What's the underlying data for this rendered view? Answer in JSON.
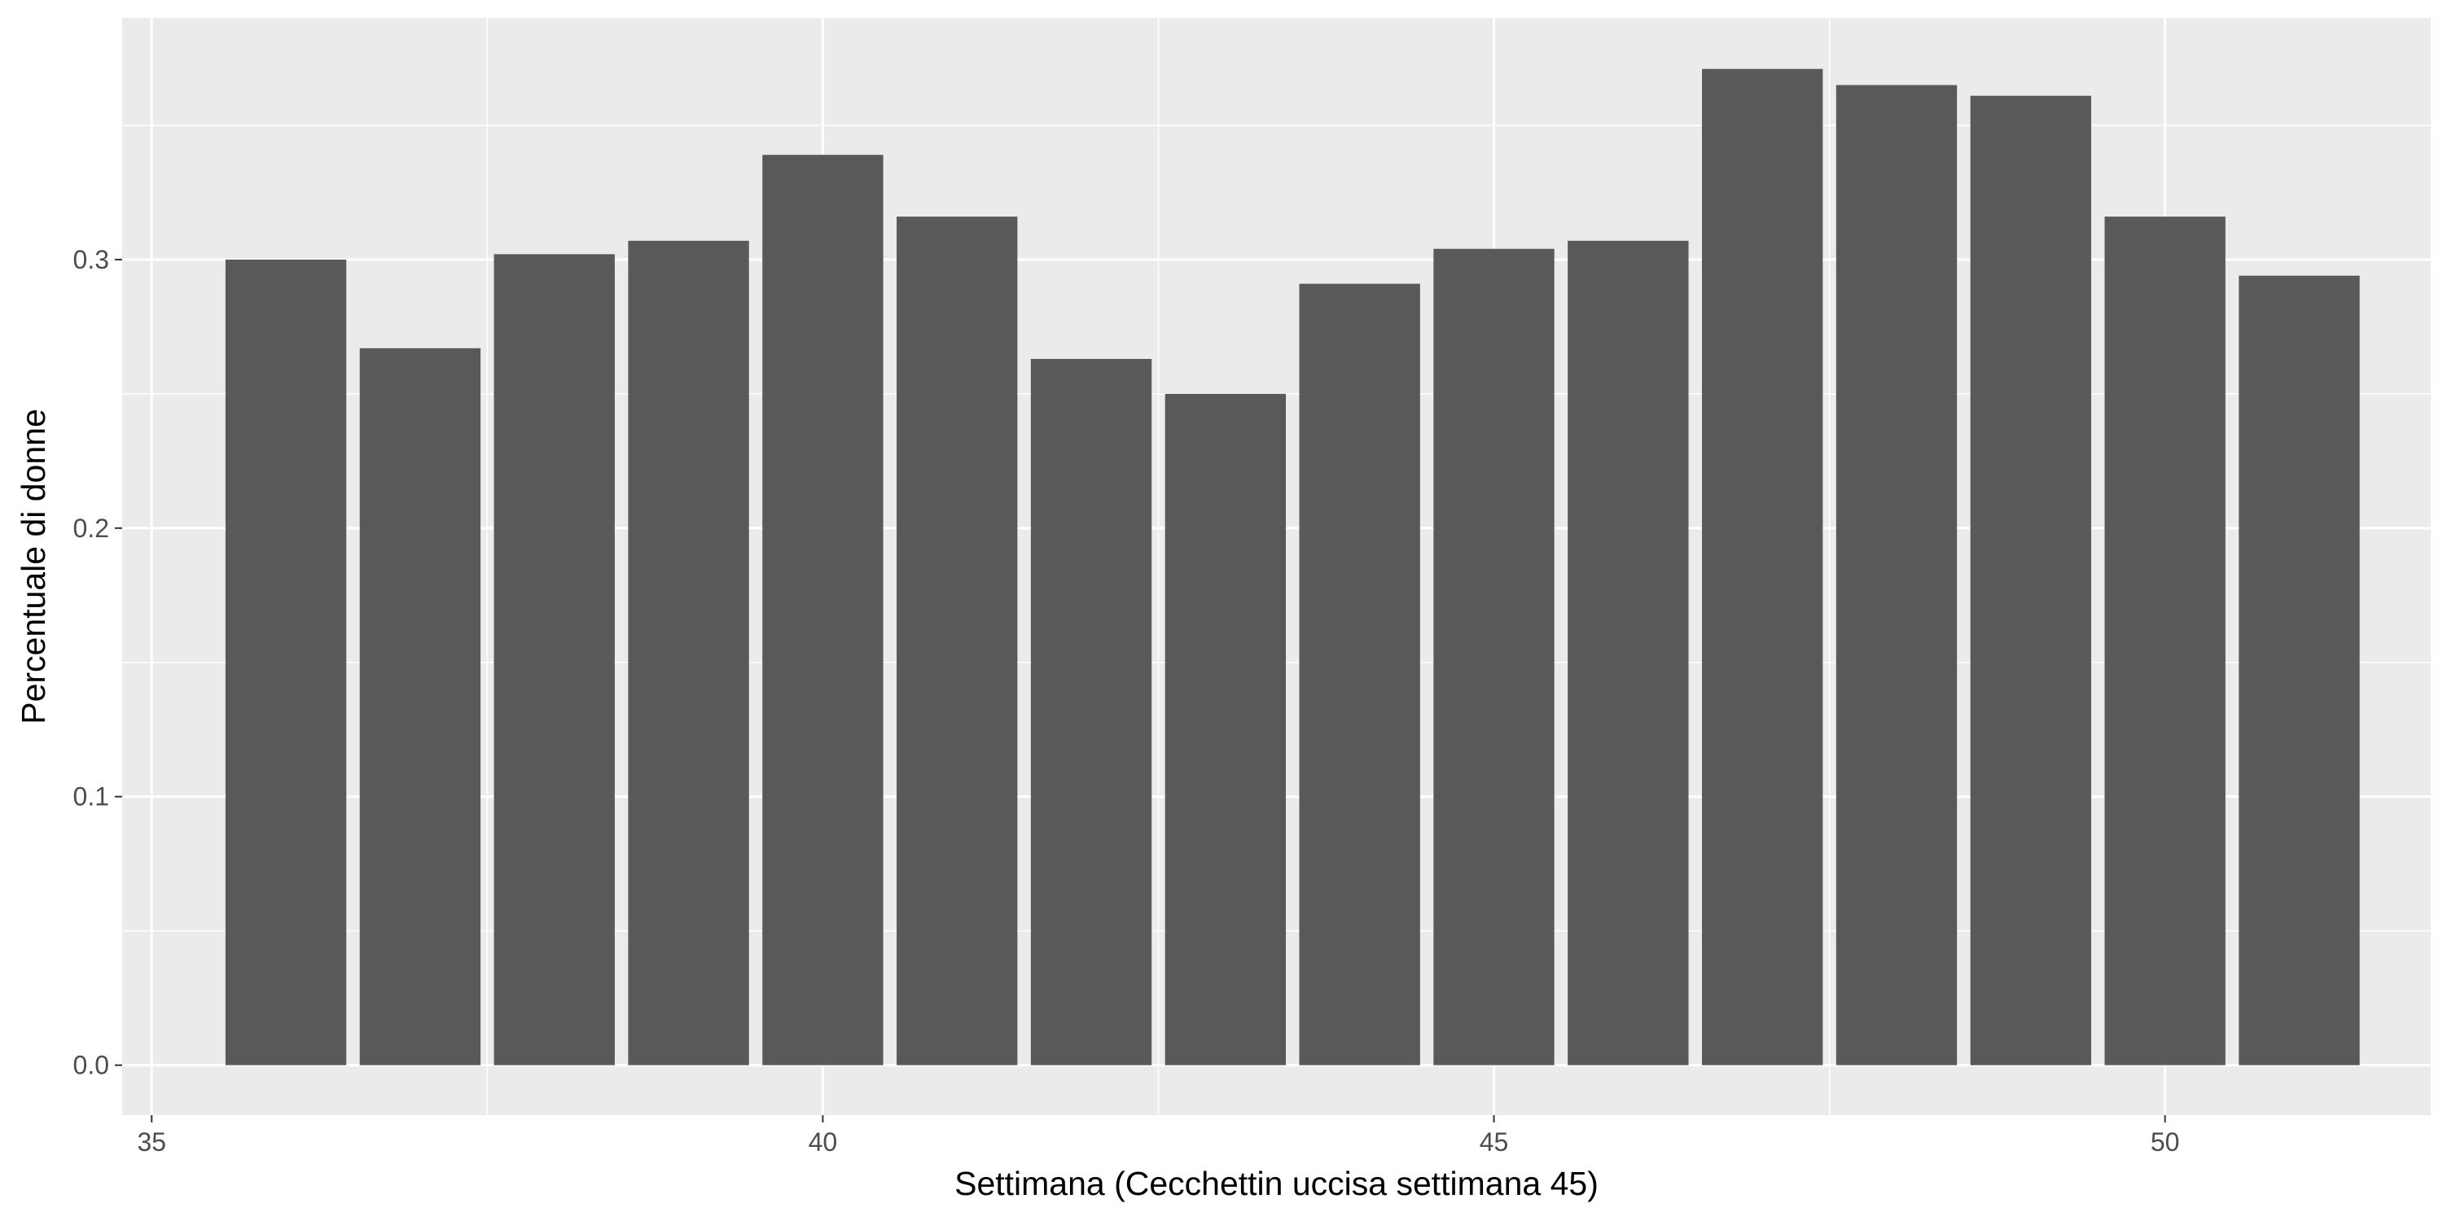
{
  "chart_data": {
    "type": "bar",
    "xlabel": "Settimana (Cecchettin uccisa settimana 45)",
    "ylabel": "Percentuale di donne",
    "x": [
      36,
      37,
      38,
      39,
      40,
      41,
      42,
      43,
      44,
      45,
      46,
      47,
      48,
      49,
      50,
      51
    ],
    "values": [
      0.3,
      0.267,
      0.302,
      0.307,
      0.339,
      0.316,
      0.263,
      0.25,
      0.291,
      0.304,
      0.307,
      0.371,
      0.365,
      0.361,
      0.316,
      0.294
    ],
    "xlim": [
      34.78,
      51.98
    ],
    "ylim": [
      -0.0186,
      0.39
    ],
    "x_ticks": [
      35,
      40,
      45,
      50
    ],
    "x_tick_labels": [
      "35",
      "40",
      "45",
      "50"
    ],
    "y_ticks": [
      0.0,
      0.1,
      0.2,
      0.3
    ],
    "y_tick_labels": [
      "0.0",
      "0.1",
      "0.2",
      "0.3"
    ],
    "bar_width": 0.9,
    "grid": true,
    "colors": {
      "bar": "#595959",
      "panel_background": "#ebebeb",
      "grid": "#ffffff",
      "tick": "#333333",
      "tick_label": "#4d4d4d",
      "axis_title": "#000000"
    }
  }
}
